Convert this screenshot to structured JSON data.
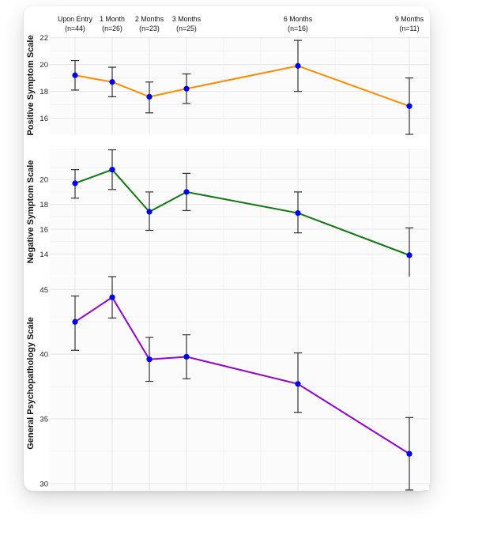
{
  "chart_data": {
    "type": "line",
    "x_categories": [
      {
        "label": "Upon Entry",
        "n": "(n=44)",
        "month": 0
      },
      {
        "label": "1 Month",
        "n": "(n=26)",
        "month": 1
      },
      {
        "label": "2 Months",
        "n": "(n=23)",
        "month": 2
      },
      {
        "label": "3 Months",
        "n": "(n=25)",
        "month": 3
      },
      {
        "label": "6 Months",
        "n": "(n=16)",
        "month": 6
      },
      {
        "label": "9 Months",
        "n": "(n=11)",
        "month": 9
      }
    ],
    "panels": [
      {
        "ylabel": "Positive Symptom Scale",
        "color": "#ff8c00",
        "ylim": [
          14.8,
          22.1
        ],
        "yticks": [
          16,
          18,
          20,
          22
        ],
        "values": [
          19.2,
          18.7,
          17.6,
          18.2,
          19.9,
          16.9
        ],
        "err_low": [
          18.1,
          17.6,
          16.4,
          17.1,
          18.0,
          14.8
        ],
        "err_high": [
          20.3,
          19.8,
          18.7,
          19.3,
          21.8,
          19.0
        ]
      },
      {
        "ylabel": "Negative Symptom Scale",
        "color": "#117711",
        "ylim": [
          12.3,
          22.5
        ],
        "yticks": [
          14,
          16,
          18,
          20
        ],
        "values": [
          19.7,
          20.8,
          17.4,
          19.0,
          17.3,
          13.9
        ],
        "err_low": [
          18.5,
          19.2,
          15.9,
          17.5,
          15.7,
          12.0
        ],
        "err_high": [
          20.8,
          22.4,
          19.0,
          20.5,
          19.0,
          16.1
        ]
      },
      {
        "ylabel": "General Psychopathology Scale",
        "color": "#9400d3",
        "ylim": [
          29.5,
          46.0
        ],
        "yticks": [
          30,
          35,
          40,
          45
        ],
        "values": [
          42.5,
          44.4,
          39.6,
          39.8,
          37.7,
          32.3
        ],
        "err_low": [
          40.3,
          42.8,
          37.9,
          38.1,
          35.5,
          29.5
        ],
        "err_high": [
          44.5,
          46.0,
          41.3,
          41.5,
          40.1,
          35.1
        ]
      }
    ],
    "marker_color": "#0000ee",
    "grid": true
  }
}
